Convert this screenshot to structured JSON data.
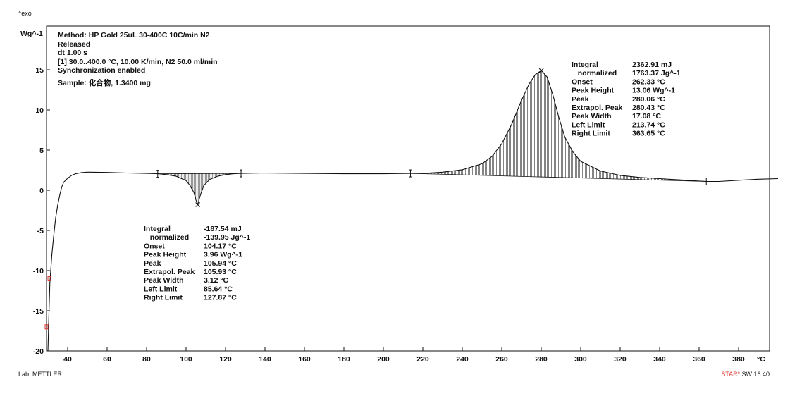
{
  "chart_data": {
    "type": "line",
    "corner_label": "^exo",
    "ylabel": "Wg^-1",
    "xlabel": "°C",
    "xlim": [
      30,
      400
    ],
    "ylim": [
      -20,
      20
    ],
    "x_ticks": [
      40,
      60,
      80,
      100,
      120,
      140,
      160,
      180,
      200,
      220,
      240,
      260,
      280,
      300,
      320,
      340,
      360,
      380
    ],
    "y_ticks": [
      15,
      10,
      5,
      0,
      -5,
      -10,
      -15,
      -20
    ],
    "header_lines": [
      "Method: HP Gold 25uL 30-400C 10C/min  N2",
      "Released",
      "dt 1.00 s",
      "[1] 30.0..400.0 °C, 10.00 K/min, N2 50.0 ml/min",
      "Synchronization enabled"
    ],
    "sample": "Sample: 化合物, 1.3400 mg",
    "footer_left": "Lab: METTLER",
    "footer_right_brand": "STAR",
    "footer_right_sup": "e",
    "footer_right_version": " SW 16.40",
    "series": [
      {
        "values": [
          [
            30,
            -20
          ],
          [
            30.5,
            -15.5
          ],
          [
            31,
            -11.5
          ],
          [
            32,
            -8
          ],
          [
            33,
            -5.5
          ],
          [
            34,
            -3.3
          ],
          [
            35,
            -1.8
          ],
          [
            36,
            -0.6
          ],
          [
            37,
            0.4
          ],
          [
            38,
            1.0
          ],
          [
            40,
            1.5
          ],
          [
            42,
            1.85
          ],
          [
            44,
            2.05
          ],
          [
            47,
            2.2
          ],
          [
            50,
            2.25
          ],
          [
            60,
            2.22
          ],
          [
            70,
            2.15
          ],
          [
            80,
            2.1
          ],
          [
            86,
            2.05
          ],
          [
            90,
            1.95
          ],
          [
            95,
            1.75
          ],
          [
            100,
            1.2
          ],
          [
            102,
            0.6
          ],
          [
            104,
            -0.3
          ],
          [
            105,
            -1.2
          ],
          [
            105.94,
            -1.8
          ],
          [
            107,
            -0.8
          ],
          [
            109,
            0.6
          ],
          [
            112,
            1.35
          ],
          [
            116,
            1.75
          ],
          [
            120,
            1.95
          ],
          [
            124,
            2.05
          ],
          [
            127.87,
            2.1
          ],
          [
            140,
            2.15
          ],
          [
            160,
            2.1
          ],
          [
            180,
            2.05
          ],
          [
            200,
            2.05
          ],
          [
            213.74,
            2.1
          ],
          [
            220,
            2.1
          ],
          [
            230,
            2.25
          ],
          [
            240,
            2.55
          ],
          [
            250,
            3.3
          ],
          [
            255,
            4.2
          ],
          [
            260,
            5.8
          ],
          [
            265,
            8.2
          ],
          [
            270,
            11.2
          ],
          [
            274,
            13.3
          ],
          [
            277,
            14.4
          ],
          [
            280.06,
            14.9
          ],
          [
            283,
            14.1
          ],
          [
            286,
            11.8
          ],
          [
            289,
            9.0
          ],
          [
            292,
            6.6
          ],
          [
            296,
            4.8
          ],
          [
            300,
            3.6
          ],
          [
            310,
            2.4
          ],
          [
            320,
            1.85
          ],
          [
            330,
            1.6
          ],
          [
            340,
            1.45
          ],
          [
            350,
            1.3
          ],
          [
            363.65,
            1.1
          ],
          [
            370,
            1.1
          ],
          [
            380,
            1.25
          ],
          [
            390,
            1.38
          ],
          [
            400,
            1.45
          ]
        ]
      }
    ],
    "peaks": [
      {
        "left_limit": 85.64,
        "right_limit": 127.87,
        "peak_x": 105.94,
        "peak_y": -1.8,
        "labels": [
          "Integral",
          "  normalized",
          "Onset",
          "Peak Height",
          "Peak",
          "Extrapol. Peak",
          "Peak Width",
          "Left Limit",
          "Right Limit"
        ],
        "values": [
          "-187.54 mJ",
          "-139.95 Jg^-1",
          "104.17 °C",
          "3.96 Wg^-1",
          "105.94 °C",
          "105.93 °C",
          "3.12 °C",
          "85.64 °C",
          "127.87 °C"
        ]
      },
      {
        "left_limit": 213.74,
        "right_limit": 363.65,
        "peak_x": 280.06,
        "peak_y": 14.9,
        "labels": [
          "Integral",
          "  normalized",
          "Onset",
          "Peak Height",
          "Peak",
          "Extrapol. Peak",
          "Peak Width",
          "Left Limit",
          "Right Limit"
        ],
        "values": [
          "2362.91 mJ",
          "1763.37 Jg^-1",
          "262.33 °C",
          "13.06 Wg^-1",
          "280.06 °C",
          "280.43 °C",
          "17.08 °C",
          "213.74 °C",
          "363.65 °C"
        ]
      }
    ],
    "colors": {
      "curve": "#111111",
      "hatch": "#333333",
      "marker": "#d9342b",
      "frame": "#111111"
    }
  }
}
